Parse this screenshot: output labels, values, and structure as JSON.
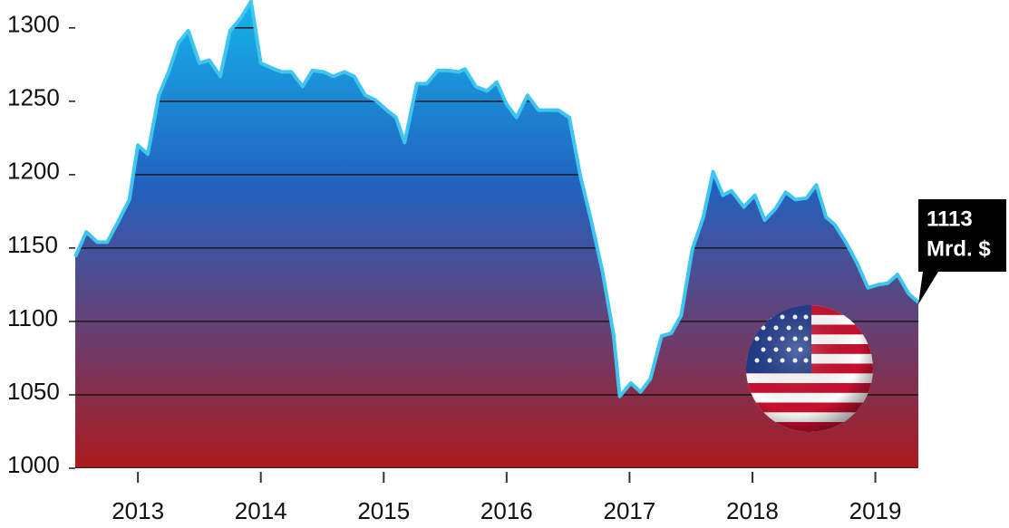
{
  "chart_data": {
    "type": "area",
    "x": [
      2012.49,
      2012.58,
      2012.67,
      2012.75,
      2012.84,
      2012.93,
      2013.0,
      2013.08,
      2013.17,
      2013.25,
      2013.33,
      2013.41,
      2013.5,
      2013.58,
      2013.67,
      2013.75,
      2013.84,
      2013.92,
      2014.0,
      2014.08,
      2014.17,
      2014.25,
      2014.34,
      2014.42,
      2014.51,
      2014.59,
      2014.68,
      2014.76,
      2014.85,
      2014.93,
      2015.01,
      2015.1,
      2015.17,
      2015.27,
      2015.35,
      2015.44,
      2015.52,
      2015.61,
      2015.66,
      2015.75,
      2015.84,
      2015.92,
      2016.0,
      2016.08,
      2016.17,
      2016.26,
      2016.34,
      2016.42,
      2016.51,
      2016.6,
      2016.69,
      2016.78,
      2016.87,
      2016.92,
      2017.01,
      2017.09,
      2017.17,
      2017.26,
      2017.34,
      2017.42,
      2017.51,
      2017.6,
      2017.68,
      2017.76,
      2017.83,
      2017.93,
      2018.02,
      2018.1,
      2018.19,
      2018.27,
      2018.35,
      2018.44,
      2018.52,
      2018.6,
      2018.67,
      2018.76,
      2018.85,
      2018.94,
      2019.02,
      2019.1,
      2019.18,
      2019.27,
      2019.35
    ],
    "values": [
      1144,
      1161,
      1154,
      1154,
      1168,
      1183,
      1220,
      1214,
      1254,
      1270,
      1290,
      1298,
      1276,
      1278,
      1267,
      1298,
      1307,
      1318,
      1276,
      1273,
      1270,
      1270,
      1260,
      1271,
      1270,
      1267,
      1270,
      1267,
      1254,
      1251,
      1245,
      1239,
      1222,
      1262,
      1262,
      1271,
      1271,
      1270,
      1272,
      1260,
      1257,
      1263,
      1248,
      1239,
      1254,
      1244,
      1244,
      1244,
      1239,
      1199,
      1168,
      1134,
      1091,
      1049,
      1058,
      1052,
      1061,
      1090,
      1092,
      1104,
      1149,
      1171,
      1202,
      1186,
      1189,
      1178,
      1186,
      1169,
      1177,
      1188,
      1183,
      1184,
      1193,
      1171,
      1166,
      1154,
      1140,
      1123,
      1125,
      1126,
      1132,
      1119,
      1113
    ],
    "color": "#3ec6f0",
    "xlim": [
      2012.49,
      2019.35
    ],
    "xticks": [
      2013,
      2014,
      2015,
      2016,
      2017,
      2018,
      2019
    ],
    "ylim": [
      1000,
      1319
    ],
    "yticks": [
      1000,
      1050,
      1100,
      1150,
      1200,
      1250,
      1300
    ],
    "grid": true,
    "annotations": [
      "1113",
      "Mrd. $"
    ]
  }
}
